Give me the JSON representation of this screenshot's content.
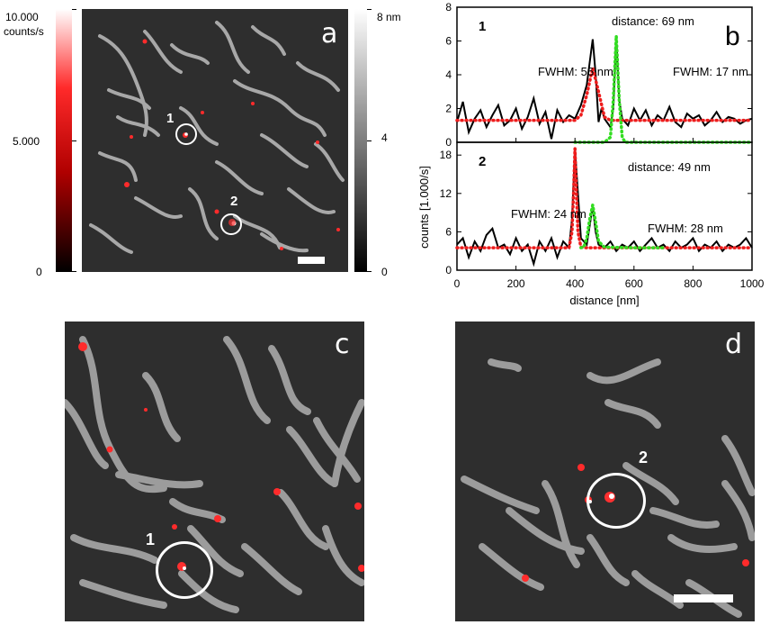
{
  "panel_a": {
    "letter": "a",
    "intensity_bar": {
      "max_label": "10.000",
      "unit_label": "counts/s",
      "mid_label": "5.000",
      "min_label": "0"
    },
    "height_bar": {
      "max_label": "8 nm",
      "mid_label": "4",
      "min_label": "0"
    },
    "markers": [
      "1",
      "2"
    ],
    "colors": {
      "background": "#2e2e2e",
      "filaments": "#b8b8b8",
      "fluorescence": "#ff2020",
      "circle": "#ffffff"
    }
  },
  "panel_c": {
    "letter": "c",
    "marker": "1"
  },
  "panel_d": {
    "letter": "d",
    "marker": "2"
  },
  "chart_data": [
    {
      "type": "line",
      "panel": "b",
      "subplot_label": "1",
      "ylabel": "counts [1.000/s]",
      "ylim": [
        0,
        8
      ],
      "yticks": [
        "0",
        "2",
        "4",
        "6",
        "8"
      ],
      "xlim": [
        0,
        1000
      ],
      "annotations": [
        "distance: 69 nm",
        "FWHM: 56 nm",
        "FWHM: 17 nm"
      ],
      "series": [
        {
          "color": "#000000",
          "style": "solid",
          "x": [
            0,
            20,
            40,
            60,
            80,
            100,
            120,
            140,
            160,
            180,
            200,
            220,
            240,
            260,
            280,
            300,
            320,
            340,
            360,
            380,
            400,
            420,
            440,
            460,
            470,
            480,
            490,
            500,
            520,
            530,
            540,
            550,
            560,
            580,
            600,
            620,
            640,
            660,
            680,
            700,
            720,
            740,
            760,
            780,
            800,
            820,
            840,
            860,
            880,
            900,
            920,
            940,
            960,
            980,
            1000
          ],
          "y": [
            1.2,
            2.4,
            0.6,
            1.4,
            1.9,
            0.9,
            1.6,
            2.2,
            1.0,
            1.3,
            2.0,
            0.8,
            1.5,
            2.6,
            1.1,
            1.8,
            0.2,
            1.9,
            1.2,
            1.6,
            1.4,
            2.2,
            3.4,
            6.1,
            4.0,
            1.2,
            2.0,
            1.4,
            0.9,
            2.0,
            6.2,
            2.5,
            1.4,
            1.0,
            2.0,
            1.3,
            1.9,
            1.0,
            1.6,
            1.3,
            2.1,
            1.2,
            0.9,
            1.7,
            1.4,
            1.6,
            1.0,
            1.3,
            1.8,
            1.2,
            1.5,
            1.4,
            1.1,
            1.3,
            1.4
          ]
        },
        {
          "color": "#ee1c1c",
          "style": "dotted",
          "x": [
            0,
            100,
            200,
            300,
            400,
            420,
            440,
            460,
            480,
            500,
            520,
            600,
            700,
            800,
            900,
            1000
          ],
          "y": [
            1.3,
            1.3,
            1.3,
            1.3,
            1.3,
            1.6,
            2.8,
            4.4,
            3.0,
            1.5,
            1.3,
            1.3,
            1.3,
            1.3,
            1.3,
            1.3
          ]
        },
        {
          "color": "#33dd22",
          "style": "dotted",
          "x": [
            400,
            450,
            500,
            520,
            530,
            540,
            550,
            560,
            570,
            600,
            700,
            800,
            900,
            1000
          ],
          "y": [
            0,
            0,
            0,
            0.3,
            2.5,
            6.3,
            2.5,
            0.3,
            0,
            0,
            0,
            0,
            0,
            0
          ]
        }
      ]
    },
    {
      "type": "line",
      "panel": "b",
      "subplot_label": "2",
      "ylabel": "counts [1.000/s]",
      "xlabel": "distance [nm]",
      "ylim": [
        0,
        20
      ],
      "yticks": [
        "0",
        "6",
        "12",
        "18"
      ],
      "xlim": [
        0,
        1000
      ],
      "xticks": [
        "0",
        "200",
        "400",
        "600",
        "800",
        "1000"
      ],
      "annotations": [
        "distance: 49 nm",
        "FWHM: 24 nm",
        "FWHM: 28 nm"
      ],
      "series": [
        {
          "color": "#000000",
          "style": "solid",
          "x": [
            0,
            20,
            40,
            60,
            80,
            100,
            120,
            140,
            160,
            180,
            200,
            220,
            240,
            260,
            280,
            300,
            320,
            340,
            360,
            380,
            390,
            400,
            410,
            420,
            440,
            450,
            460,
            470,
            480,
            500,
            520,
            540,
            560,
            580,
            600,
            620,
            640,
            660,
            680,
            700,
            720,
            740,
            760,
            780,
            800,
            820,
            840,
            860,
            880,
            900,
            920,
            940,
            960,
            980,
            1000
          ],
          "y": [
            4.0,
            5.0,
            2.0,
            4.5,
            3.0,
            5.5,
            6.5,
            3.5,
            4.0,
            2.5,
            5.0,
            3.0,
            4.0,
            1.0,
            4.5,
            3.0,
            5.0,
            2.0,
            4.5,
            3.5,
            8.0,
            19.0,
            12.0,
            5.0,
            4.0,
            7.0,
            10.0,
            6.0,
            4.0,
            3.5,
            4.5,
            3.0,
            4.0,
            3.5,
            4.5,
            3.0,
            4.0,
            5.0,
            3.5,
            4.0,
            3.0,
            4.5,
            3.5,
            4.0,
            5.0,
            3.0,
            4.0,
            3.5,
            4.5,
            3.0,
            4.0,
            3.5,
            4.0,
            5.0,
            3.5
          ]
        },
        {
          "color": "#ee1c1c",
          "style": "dotted",
          "x": [
            0,
            100,
            200,
            300,
            380,
            390,
            395,
            400,
            405,
            410,
            420,
            440,
            500,
            600,
            700,
            800,
            900,
            1000
          ],
          "y": [
            3.5,
            3.5,
            3.5,
            3.5,
            3.5,
            6.0,
            12.0,
            19.0,
            12.0,
            6.0,
            3.6,
            3.5,
            3.5,
            3.5,
            3.5,
            3.5,
            3.5,
            3.5
          ]
        },
        {
          "color": "#33dd22",
          "style": "dotted",
          "x": [
            420,
            430,
            440,
            450,
            460,
            470,
            480,
            500,
            600,
            700
          ],
          "y": [
            3.5,
            3.6,
            5.0,
            8.0,
            10.2,
            7.5,
            4.5,
            3.6,
            3.5,
            3.5
          ]
        }
      ]
    }
  ]
}
